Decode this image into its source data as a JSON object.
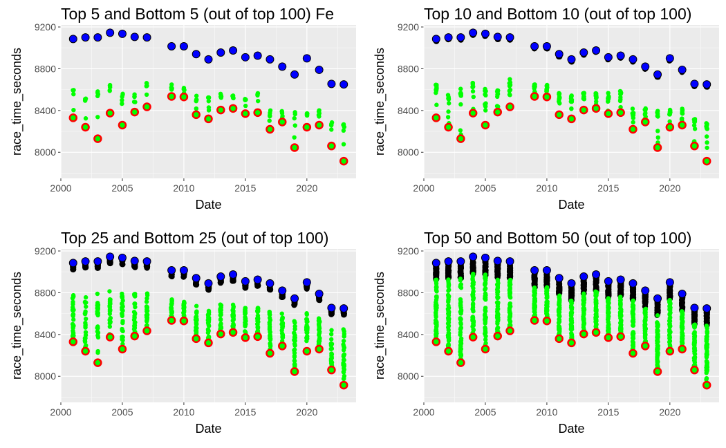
{
  "chart_data": [
    {
      "type": "scatter",
      "title": "Top 5 and Bottom 5 (out of top 100) Fe",
      "xlabel": "Date",
      "ylabel": "race_time_seconds",
      "xlim": [
        2000,
        2024
      ],
      "ylim": [
        7750,
        9220
      ],
      "xticks": [
        2000,
        2005,
        2010,
        2015,
        2020
      ],
      "yticks": [
        8000,
        8400,
        8800,
        9200
      ],
      "n_group": 5,
      "grid": true,
      "legend": "none",
      "colors": {
        "slowest": "#0000ff",
        "fastest": "#ff0000",
        "top_group": "#000000",
        "bottom_group": "#00ff00",
        "panel_bg": "#ebebeb"
      }
    },
    {
      "type": "scatter",
      "title": "Top 10 and Bottom 10 (out of top 100)",
      "xlabel": "Date",
      "ylabel": "race_time_seconds",
      "xlim": [
        2000,
        2024
      ],
      "ylim": [
        7750,
        9220
      ],
      "xticks": [
        2000,
        2005,
        2010,
        2015,
        2020
      ],
      "yticks": [
        8000,
        8400,
        8800,
        9200
      ],
      "n_group": 10,
      "grid": true,
      "legend": "none",
      "colors": {
        "slowest": "#0000ff",
        "fastest": "#ff0000",
        "top_group": "#000000",
        "bottom_group": "#00ff00",
        "panel_bg": "#ebebeb"
      }
    },
    {
      "type": "scatter",
      "title": "Top 25 and Bottom 25 (out of top 100)",
      "xlabel": "Date",
      "ylabel": "race_time_seconds",
      "xlim": [
        2000,
        2024
      ],
      "ylim": [
        7750,
        9220
      ],
      "xticks": [
        2000,
        2005,
        2010,
        2015,
        2020
      ],
      "yticks": [
        8000,
        8400,
        8800,
        9200
      ],
      "n_group": 25,
      "grid": true,
      "legend": "none",
      "colors": {
        "slowest": "#0000ff",
        "fastest": "#ff0000",
        "top_group": "#000000",
        "bottom_group": "#00ff00",
        "panel_bg": "#ebebeb"
      }
    },
    {
      "type": "scatter",
      "title": "Top 50 and Bottom 50 (out of top 100)",
      "xlabel": "Date",
      "ylabel": "race_time_seconds",
      "xlim": [
        2000,
        2024
      ],
      "ylim": [
        7750,
        9220
      ],
      "xticks": [
        2000,
        2005,
        2010,
        2015,
        2020
      ],
      "yticks": [
        8000,
        8400,
        8800,
        9200
      ],
      "n_group": 50,
      "grid": true,
      "legend": "none",
      "colors": {
        "slowest": "#0000ff",
        "fastest": "#ff0000",
        "top_group": "#000000",
        "bottom_group": "#00ff00",
        "panel_bg": "#ebebeb"
      }
    }
  ],
  "series_data": {
    "years": [
      2001,
      2002,
      2003,
      2004,
      2005,
      2006,
      2007,
      2009,
      2010,
      2011,
      2012,
      2013,
      2014,
      2015,
      2016,
      2017,
      2018,
      2019,
      2020,
      2021,
      2022,
      2023
    ],
    "slowest_of_top100": [
      9085,
      9100,
      9100,
      9145,
      9135,
      9105,
      9100,
      9015,
      9015,
      8940,
      8890,
      8955,
      8975,
      8910,
      8925,
      8890,
      8820,
      8745,
      8900,
      8790,
      8655,
      8650
    ],
    "fastest": [
      8330,
      8240,
      8130,
      8375,
      8260,
      8385,
      8435,
      8535,
      8530,
      8360,
      8320,
      8405,
      8420,
      8370,
      8380,
      8220,
      8290,
      8045,
      8240,
      8260,
      8060,
      7915
    ],
    "upper_bottom_group_top": [
      8640,
      8550,
      8590,
      8650,
      8590,
      8580,
      8680,
      8650,
      8630,
      8560,
      8530,
      8560,
      8560,
      8550,
      8570,
      8410,
      8400,
      8390,
      8390,
      8410,
      8300,
      8270
    ],
    "upper_bottom_group_max": [
      8860,
      8850,
      8850,
      8880,
      8880,
      8860,
      8860,
      8800,
      8790,
      8740,
      8700,
      8750,
      8760,
      8720,
      8720,
      8680,
      8660,
      8600,
      8670,
      8620,
      8520,
      8510
    ]
  }
}
